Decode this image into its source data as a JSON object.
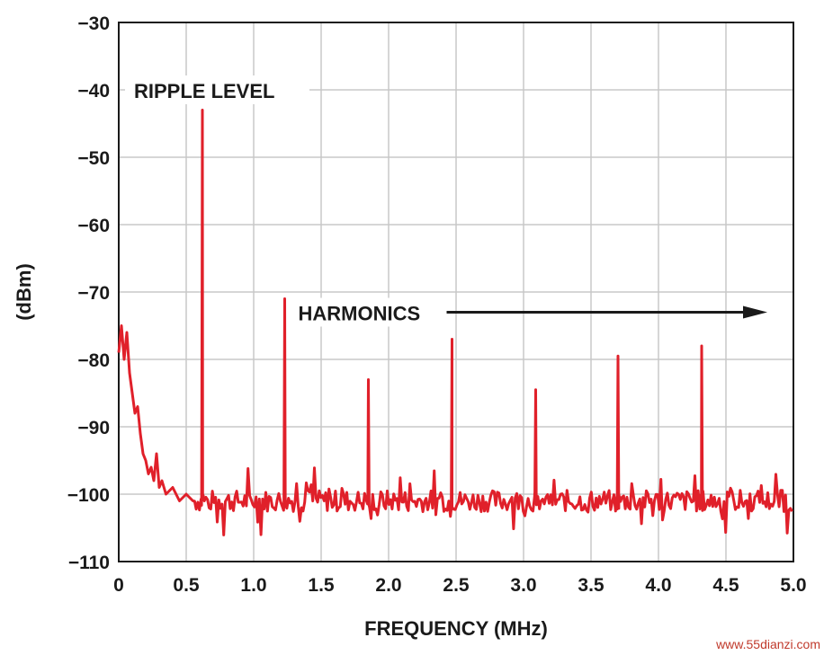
{
  "chart_data": {
    "type": "line",
    "title": "",
    "xlabel": "FREQUENCY (MHz)",
    "ylabel": "(dBm)",
    "xlim": [
      0,
      5.0
    ],
    "ylim": [
      -110,
      -30
    ],
    "grid": true,
    "xticks": [
      "0",
      "0.5",
      "1.0",
      "1.5",
      "2.0",
      "2.5",
      "3.0",
      "3.5",
      "4.0",
      "4.5",
      "5.0"
    ],
    "yticks": [
      "−30",
      "−40",
      "−50",
      "−60",
      "−70",
      "−80",
      "−90",
      "−100",
      "−110"
    ],
    "line_color": "#e0202a",
    "noise_floor": -101,
    "series": [
      {
        "x": [
          0,
          0.02,
          0.04,
          0.06,
          0.08,
          0.1,
          0.12,
          0.14,
          0.16,
          0.18,
          0.2,
          0.22,
          0.24,
          0.26,
          0.28,
          0.3,
          0.32,
          0.35,
          0.4,
          0.45,
          0.5,
          0.55
        ],
        "y": [
          -79,
          -75,
          -80,
          -76,
          -82,
          -85,
          -88,
          -87,
          -91,
          -94,
          -95,
          -97,
          -96,
          -98,
          -94,
          -99,
          -98,
          -100,
          -99,
          -101,
          -100,
          -101
        ]
      }
    ],
    "peaks": [
      {
        "x": 0.62,
        "y": -43
      },
      {
        "x": 1.23,
        "y": -71
      },
      {
        "x": 1.85,
        "y": -83
      },
      {
        "x": 2.47,
        "y": -77
      },
      {
        "x": 3.09,
        "y": -84.5
      },
      {
        "x": 3.7,
        "y": -79.5
      },
      {
        "x": 4.32,
        "y": -78
      }
    ],
    "annotations": [
      {
        "text": "RIPPLE LEVEL",
        "x": 0.1,
        "y": -40
      },
      {
        "text": "HARMONICS",
        "x": 1.33,
        "y": -73,
        "arrow_to_x": 4.8
      }
    ]
  },
  "watermark": "www.55dianzi.com"
}
